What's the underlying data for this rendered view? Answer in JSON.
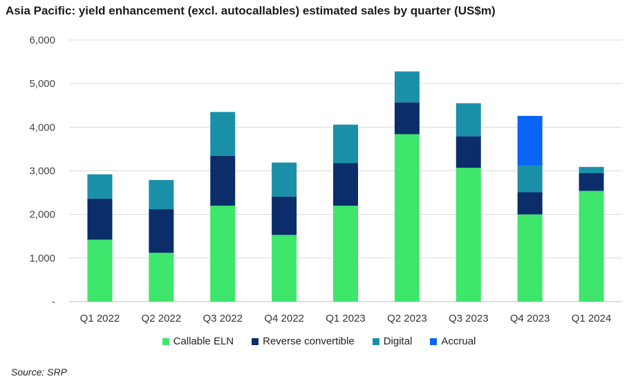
{
  "title": "Asia Pacific: yield enhancement (excl. autocallables) estimated sales by quarter (US$m)",
  "source": "Source: SRP",
  "chart_data": {
    "type": "bar",
    "stacked": true,
    "categories": [
      "Q1 2022",
      "Q2 2022",
      "Q3 2022",
      "Q4 2022",
      "Q1 2023",
      "Q2 2023",
      "Q3 2023",
      "Q4 2023",
      "Q1 2024"
    ],
    "series": [
      {
        "name": "Callable ELN",
        "color": "#3ee66b",
        "values": [
          1420,
          1120,
          2200,
          1530,
          2200,
          3840,
          3070,
          2000,
          2540
        ]
      },
      {
        "name": "Reverse convertible",
        "color": "#0b2e6b",
        "values": [
          940,
          1000,
          1140,
          880,
          980,
          730,
          720,
          510,
          410
        ]
      },
      {
        "name": "Digital",
        "color": "#1a90a8",
        "values": [
          560,
          670,
          1010,
          780,
          880,
          710,
          760,
          610,
          140
        ]
      },
      {
        "name": "Accrual",
        "color": "#0a64f5",
        "values": [
          0,
          0,
          0,
          0,
          0,
          0,
          0,
          1140,
          0
        ]
      }
    ],
    "ylim": [
      0,
      6000
    ],
    "yticks": [
      0,
      1000,
      2000,
      3000,
      4000,
      5000,
      6000
    ],
    "ytick_labels": [
      "-",
      "1,000",
      "2,000",
      "3,000",
      "4,000",
      "5,000",
      "6,000"
    ],
    "grid": true,
    "legend_position": "bottom"
  }
}
